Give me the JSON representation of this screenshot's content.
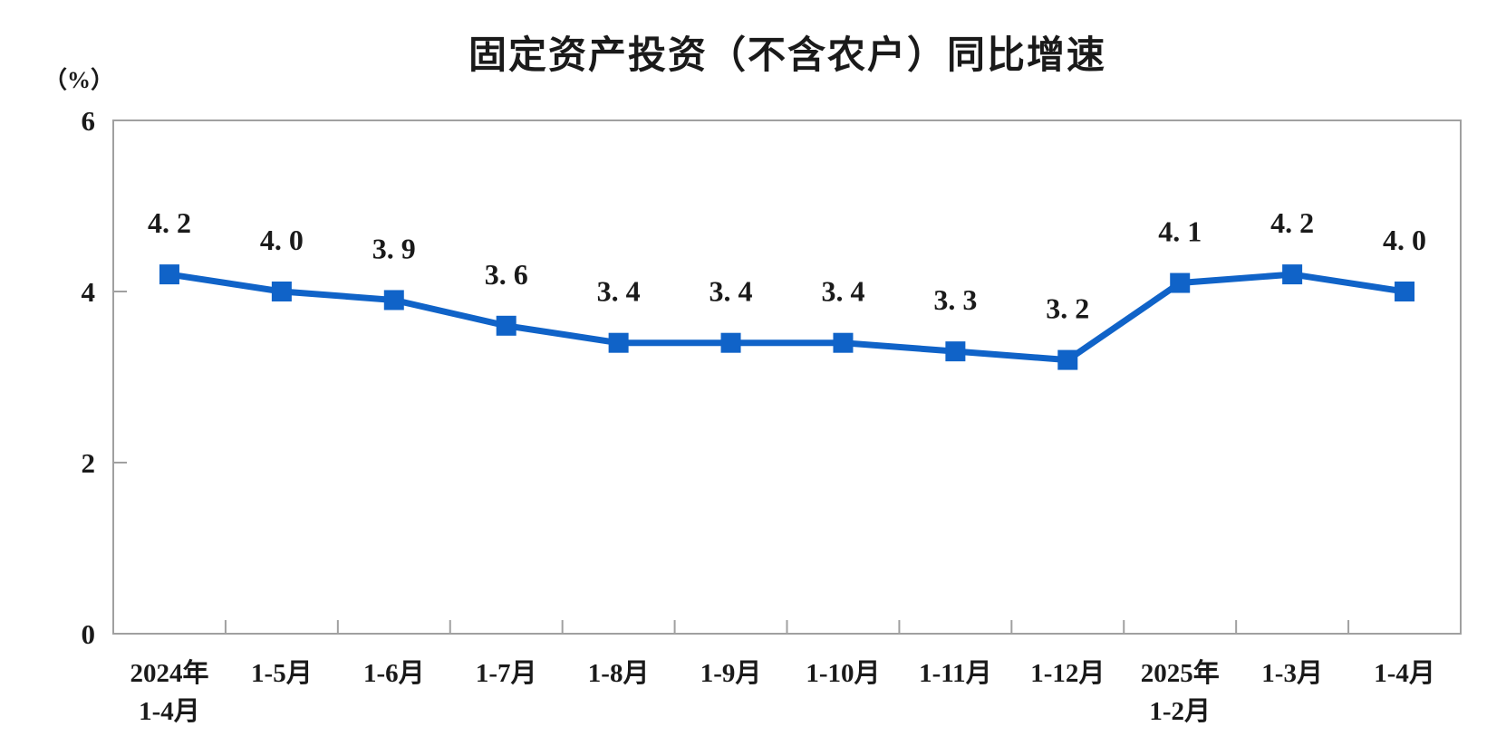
{
  "chart_data": {
    "type": "line",
    "title": "固定资产投资（不含农户）同比增速",
    "unit_label": "（%）",
    "categories": [
      "2024年\n1-4月",
      "1-5月",
      "1-6月",
      "1-7月",
      "1-8月",
      "1-9月",
      "1-10月",
      "1-11月",
      "1-12月",
      "2025年\n1-2月",
      "1-3月",
      "1-4月"
    ],
    "values": [
      4.2,
      4.0,
      3.9,
      3.6,
      3.4,
      3.4,
      3.4,
      3.3,
      3.2,
      4.1,
      4.2,
      4.0
    ],
    "point_labels": [
      "4. 2",
      "4. 0",
      "3. 9",
      "3. 6",
      "3. 4",
      "3. 4",
      "3. 4",
      "3. 3",
      "3. 2",
      "4. 1",
      "4. 2",
      "4. 0"
    ],
    "ylim": [
      0,
      6
    ],
    "yticks": [
      0,
      2,
      4,
      6
    ],
    "grid": false,
    "legend": "none",
    "colors": {
      "line": "#1063c8",
      "marker": "#1063c8",
      "axis": "#a0a0a0",
      "text": "#1a1a1a"
    }
  }
}
